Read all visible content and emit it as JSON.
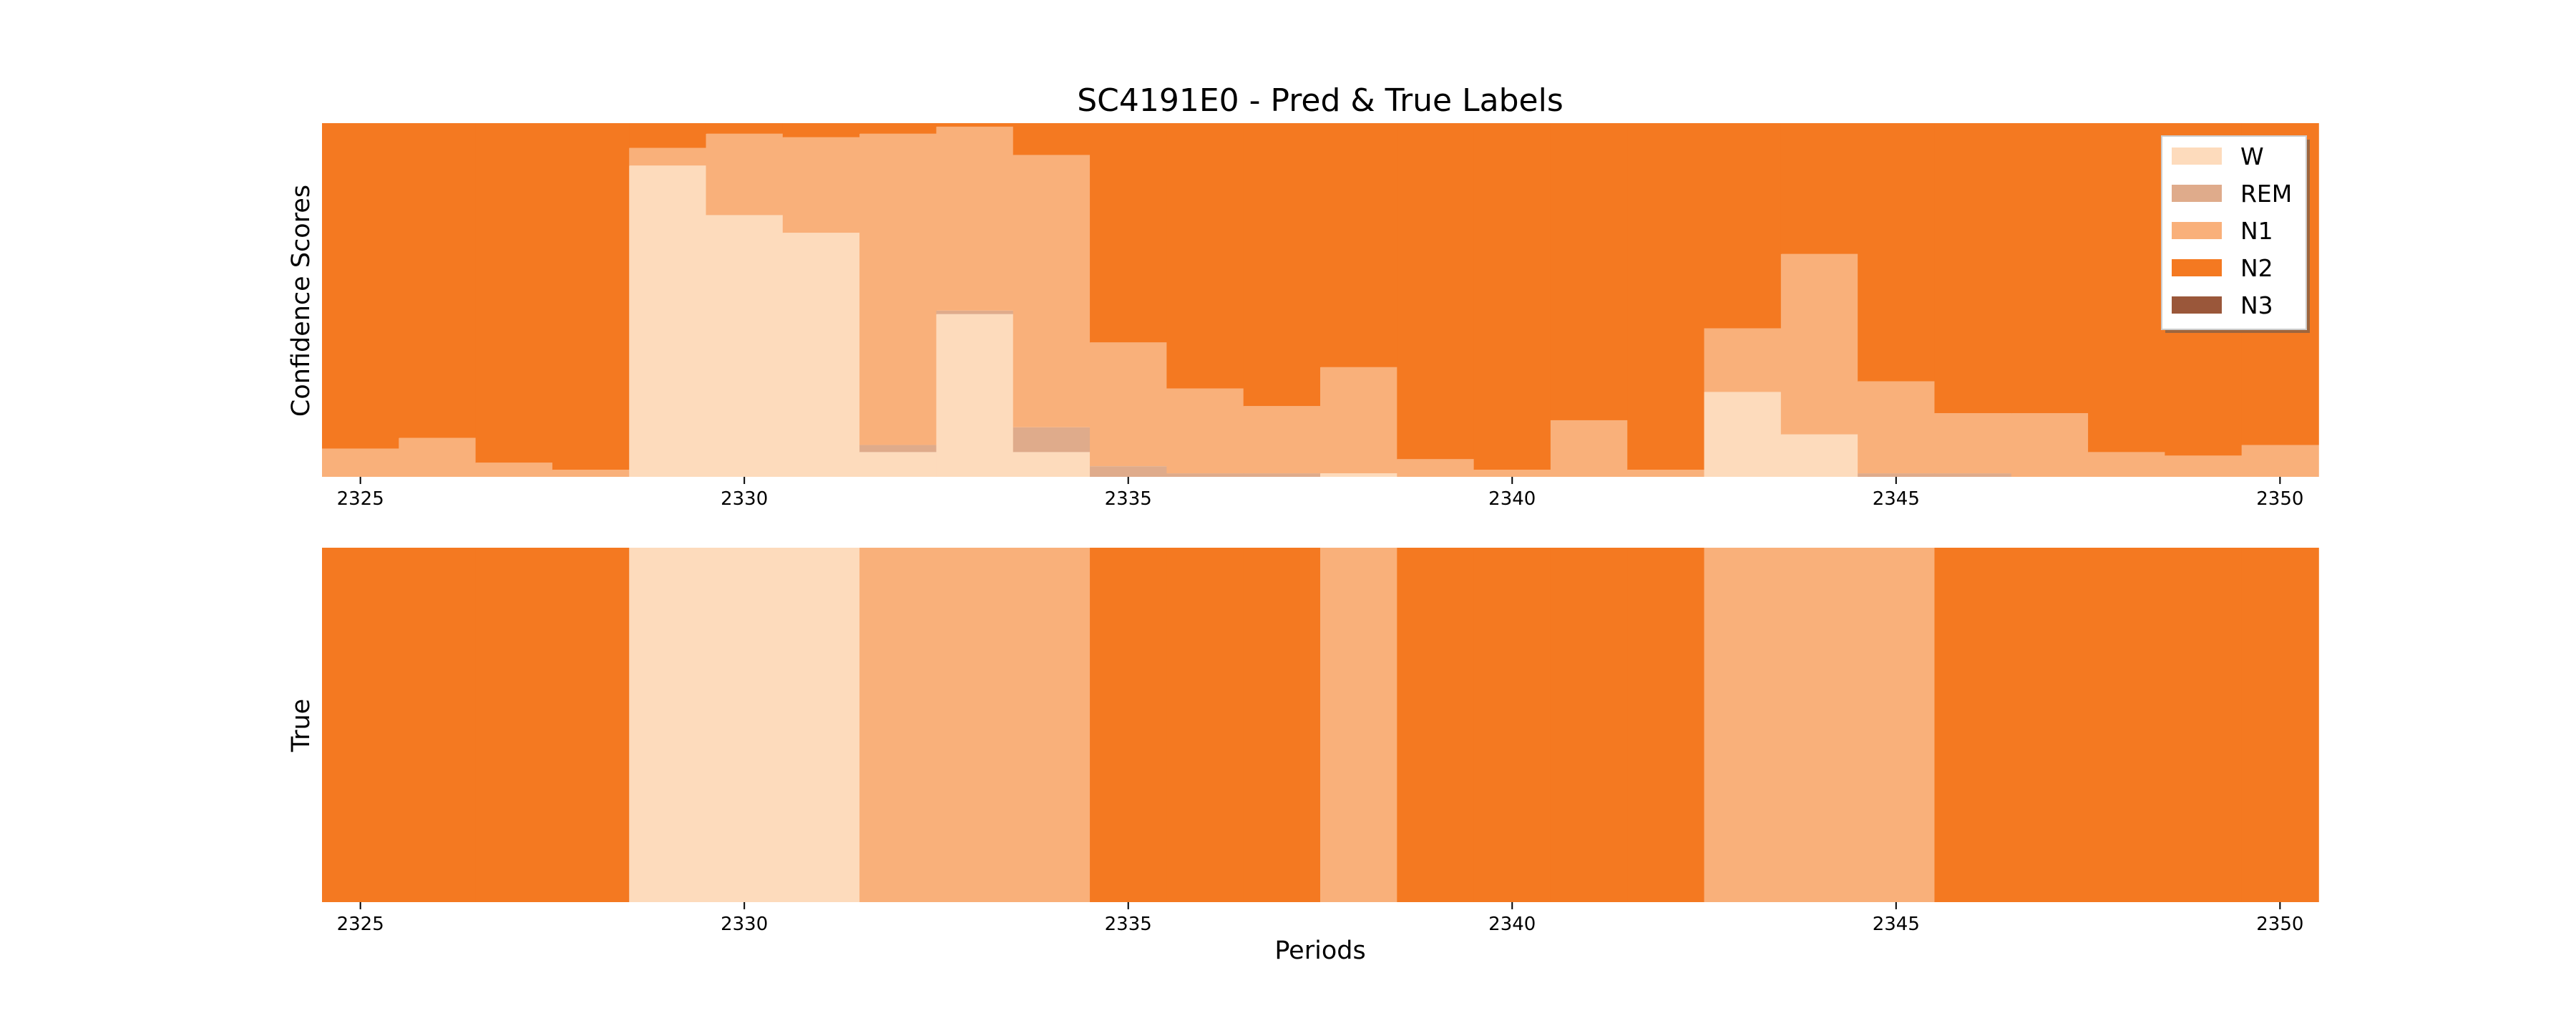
{
  "chart_data": [
    {
      "type": "area",
      "title": "SC4191E0 - Pred & True Labels",
      "ylabel": "Confidence Scores",
      "xlabel": "",
      "xlim": [
        2324.5,
        2350.5
      ],
      "ylim": [
        0,
        1
      ],
      "xticks": [
        2325,
        2330,
        2335,
        2340,
        2345,
        2350
      ],
      "legend_position": "upper right",
      "series": [
        {
          "name": "W",
          "color": "#fddbbc",
          "values": [
            0.0,
            0.0,
            0.0,
            0.0,
            0.88,
            0.74,
            0.69,
            0.07,
            0.46,
            0.07,
            0.0,
            0.0,
            0.0,
            0.01,
            0.0,
            0.0,
            0.0,
            0.0,
            0.24,
            0.12,
            0.0,
            0.0,
            0.0,
            0.0,
            0.0,
            0.0
          ]
        },
        {
          "name": "REM",
          "color": "#dfab8b",
          "values": [
            0.0,
            0.0,
            0.0,
            0.0,
            0.0,
            0.0,
            0.0,
            0.02,
            0.01,
            0.07,
            0.03,
            0.01,
            0.01,
            0.0,
            0.0,
            0.0,
            0.0,
            0.0,
            0.0,
            0.0,
            0.01,
            0.01,
            0.0,
            0.0,
            0.0,
            0.0
          ]
        },
        {
          "name": "N1",
          "color": "#f9b07a",
          "values": [
            0.08,
            0.11,
            0.04,
            0.02,
            0.05,
            0.23,
            0.27,
            0.88,
            0.52,
            0.77,
            0.35,
            0.24,
            0.19,
            0.3,
            0.05,
            0.02,
            0.16,
            0.02,
            0.18,
            0.51,
            0.26,
            0.17,
            0.18,
            0.07,
            0.06,
            0.09
          ]
        },
        {
          "name": "N2",
          "color": "#f47921",
          "values": [
            0.92,
            0.89,
            0.96,
            0.98,
            0.07,
            0.03,
            0.04,
            0.03,
            0.01,
            0.09,
            0.62,
            0.75,
            0.8,
            0.69,
            0.95,
            0.98,
            0.84,
            0.98,
            0.58,
            0.37,
            0.73,
            0.82,
            0.82,
            0.93,
            0.94,
            0.91
          ]
        },
        {
          "name": "N3",
          "color": "#9a573a",
          "values": [
            0,
            0,
            0,
            0,
            0,
            0,
            0,
            0,
            0,
            0,
            0,
            0,
            0,
            0,
            0,
            0,
            0,
            0,
            0,
            0,
            0,
            0,
            0,
            0,
            0,
            0
          ]
        }
      ]
    },
    {
      "type": "heatmap",
      "title": "",
      "ylabel": "True",
      "xlabel": "Periods",
      "xlim": [
        2324.5,
        2350.5
      ],
      "xticks": [
        2325,
        2330,
        2335,
        2340,
        2345,
        2350
      ],
      "x": [
        2325,
        2326,
        2327,
        2328,
        2329,
        2330,
        2331,
        2332,
        2333,
        2334,
        2335,
        2336,
        2337,
        2338,
        2339,
        2340,
        2341,
        2342,
        2343,
        2344,
        2345,
        2346,
        2347,
        2348,
        2349,
        2350
      ],
      "values": [
        "N2",
        "N2",
        "N2",
        "N2",
        "W",
        "W",
        "W",
        "N1",
        "N1",
        "N1",
        "N2",
        "N2",
        "N2",
        "N1",
        "N2",
        "N2",
        "N2",
        "N2",
        "N1",
        "N1",
        "N1",
        "N2",
        "N2",
        "N2",
        "N2",
        "N2"
      ]
    }
  ]
}
